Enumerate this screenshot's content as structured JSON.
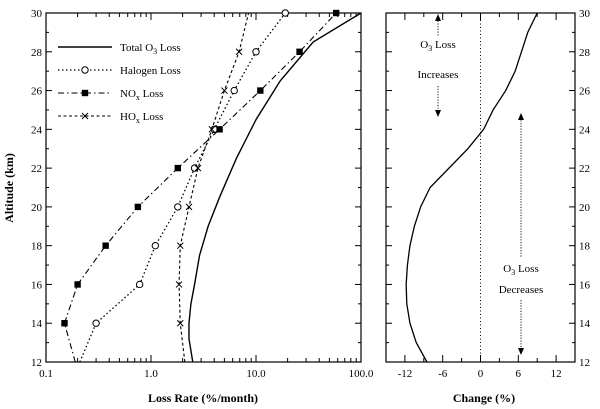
{
  "chart_data": [
    {
      "type": "line",
      "xscale": "log",
      "xlabel": "Loss Rate (%/month)",
      "ylabel": "Altitude (km)",
      "xlim": [
        0.1,
        100.0
      ],
      "ylim": [
        12,
        30
      ],
      "xticks": [
        0.1,
        1.0,
        10.0,
        100.0
      ],
      "xtick_labels": [
        "0.1",
        "1.0",
        "10.0",
        "100.0"
      ],
      "yticks": [
        12,
        14,
        16,
        18,
        20,
        22,
        24,
        26,
        28,
        30
      ],
      "legend_position": "top-left",
      "series": [
        {
          "name": "Total O3 Loss",
          "legend_main": "Total O",
          "legend_sub": "3",
          "legend_tail": " Loss",
          "style": "solid",
          "marker": "none",
          "points": [
            [
              2.5,
              12
            ],
            [
              2.3,
              13.2
            ],
            [
              2.3,
              14
            ],
            [
              2.4,
              15
            ],
            [
              2.6,
              16
            ],
            [
              2.9,
              17.5
            ],
            [
              3.5,
              19
            ],
            [
              4.5,
              20.5
            ],
            [
              6.5,
              22.5
            ],
            [
              10,
              24.5
            ],
            [
              17,
              26.5
            ],
            [
              35,
              28.5
            ],
            [
              100,
              30
            ]
          ]
        },
        {
          "name": "Halogen Loss",
          "legend_main": "Halogen Loss",
          "legend_sub": "",
          "legend_tail": "",
          "style": "dotted",
          "marker": "circle",
          "points": [
            [
              0.21,
              12
            ],
            [
              0.3,
              14
            ],
            [
              0.78,
              16
            ],
            [
              1.1,
              18
            ],
            [
              1.8,
              20
            ],
            [
              2.6,
              22
            ],
            [
              4.0,
              24
            ],
            [
              6.2,
              26
            ],
            [
              10,
              28
            ],
            [
              19,
              30
            ]
          ],
          "marker_points": [
            [
              0.3,
              14
            ],
            [
              0.78,
              16
            ],
            [
              1.1,
              18
            ],
            [
              1.8,
              20
            ],
            [
              2.6,
              22
            ],
            [
              4.0,
              24
            ],
            [
              6.2,
              26
            ],
            [
              10,
              28
            ],
            [
              19,
              30
            ]
          ]
        },
        {
          "name": "NOx Loss",
          "legend_main": "NO",
          "legend_sub": "x",
          "legend_tail": " Loss",
          "style": "dashdot",
          "marker": "square",
          "points": [
            [
              0.19,
              12
            ],
            [
              0.15,
              14
            ],
            [
              0.2,
              16
            ],
            [
              0.37,
              18
            ],
            [
              0.75,
              20
            ],
            [
              1.8,
              22
            ],
            [
              4.5,
              24
            ],
            [
              11,
              26
            ],
            [
              26,
              28
            ],
            [
              58,
              30
            ]
          ],
          "marker_points": [
            [
              0.15,
              14
            ],
            [
              0.2,
              16
            ],
            [
              0.37,
              18
            ],
            [
              0.75,
              20
            ],
            [
              1.8,
              22
            ],
            [
              4.5,
              24
            ],
            [
              11,
              26
            ],
            [
              26,
              28
            ],
            [
              58,
              30
            ]
          ]
        },
        {
          "name": "HOx Loss",
          "legend_main": "HO",
          "legend_sub": "x",
          "legend_tail": " Loss",
          "style": "dashed",
          "marker": "x",
          "points": [
            [
              2.1,
              12
            ],
            [
              1.9,
              14
            ],
            [
              1.85,
              16
            ],
            [
              1.9,
              18
            ],
            [
              2.3,
              20
            ],
            [
              2.8,
              22
            ],
            [
              3.8,
              24
            ],
            [
              5.0,
              26
            ],
            [
              6.9,
              28
            ],
            [
              8.5,
              30
            ]
          ],
          "marker_points": [
            [
              1.9,
              14
            ],
            [
              1.85,
              16
            ],
            [
              1.9,
              18
            ],
            [
              2.3,
              20
            ],
            [
              2.8,
              22
            ],
            [
              3.8,
              24
            ],
            [
              5.0,
              26
            ],
            [
              6.9,
              28
            ]
          ]
        }
      ]
    },
    {
      "type": "line",
      "xlabel": "Change (%)",
      "ylabel": "",
      "xlim": [
        -15,
        15
      ],
      "ylim": [
        12,
        30
      ],
      "xticks": [
        -12,
        -6,
        0,
        6,
        12
      ],
      "xtick_labels": [
        "-12",
        "-6",
        "0",
        "6",
        "12"
      ],
      "yticks": [
        12,
        14,
        16,
        18,
        20,
        22,
        24,
        26,
        28,
        30
      ],
      "series": [
        {
          "name": "Change",
          "style": "solid",
          "points": [
            [
              -8.5,
              12
            ],
            [
              -10.2,
              13
            ],
            [
              -11.2,
              14
            ],
            [
              -11.7,
              15
            ],
            [
              -11.8,
              16
            ],
            [
              -11.6,
              17
            ],
            [
              -11.2,
              18
            ],
            [
              -10.5,
              19
            ],
            [
              -9.5,
              20
            ],
            [
              -8,
              21
            ],
            [
              -5,
              22
            ],
            [
              -2,
              23
            ],
            [
              0.5,
              24
            ],
            [
              2,
              25
            ],
            [
              4,
              26
            ],
            [
              5.5,
              27
            ],
            [
              6.5,
              28
            ],
            [
              7.5,
              29
            ],
            [
              9,
              30
            ]
          ]
        }
      ],
      "zero_line": 0,
      "annotations": [
        {
          "name": "increases",
          "line1_main": "O",
          "line1_sub": "3",
          "line1_tail": " Loss",
          "line2": "Increases"
        },
        {
          "name": "decreases",
          "line1_main": "O",
          "line1_sub": "3",
          "line1_tail": " Loss",
          "line2": "Decreases"
        }
      ]
    }
  ]
}
